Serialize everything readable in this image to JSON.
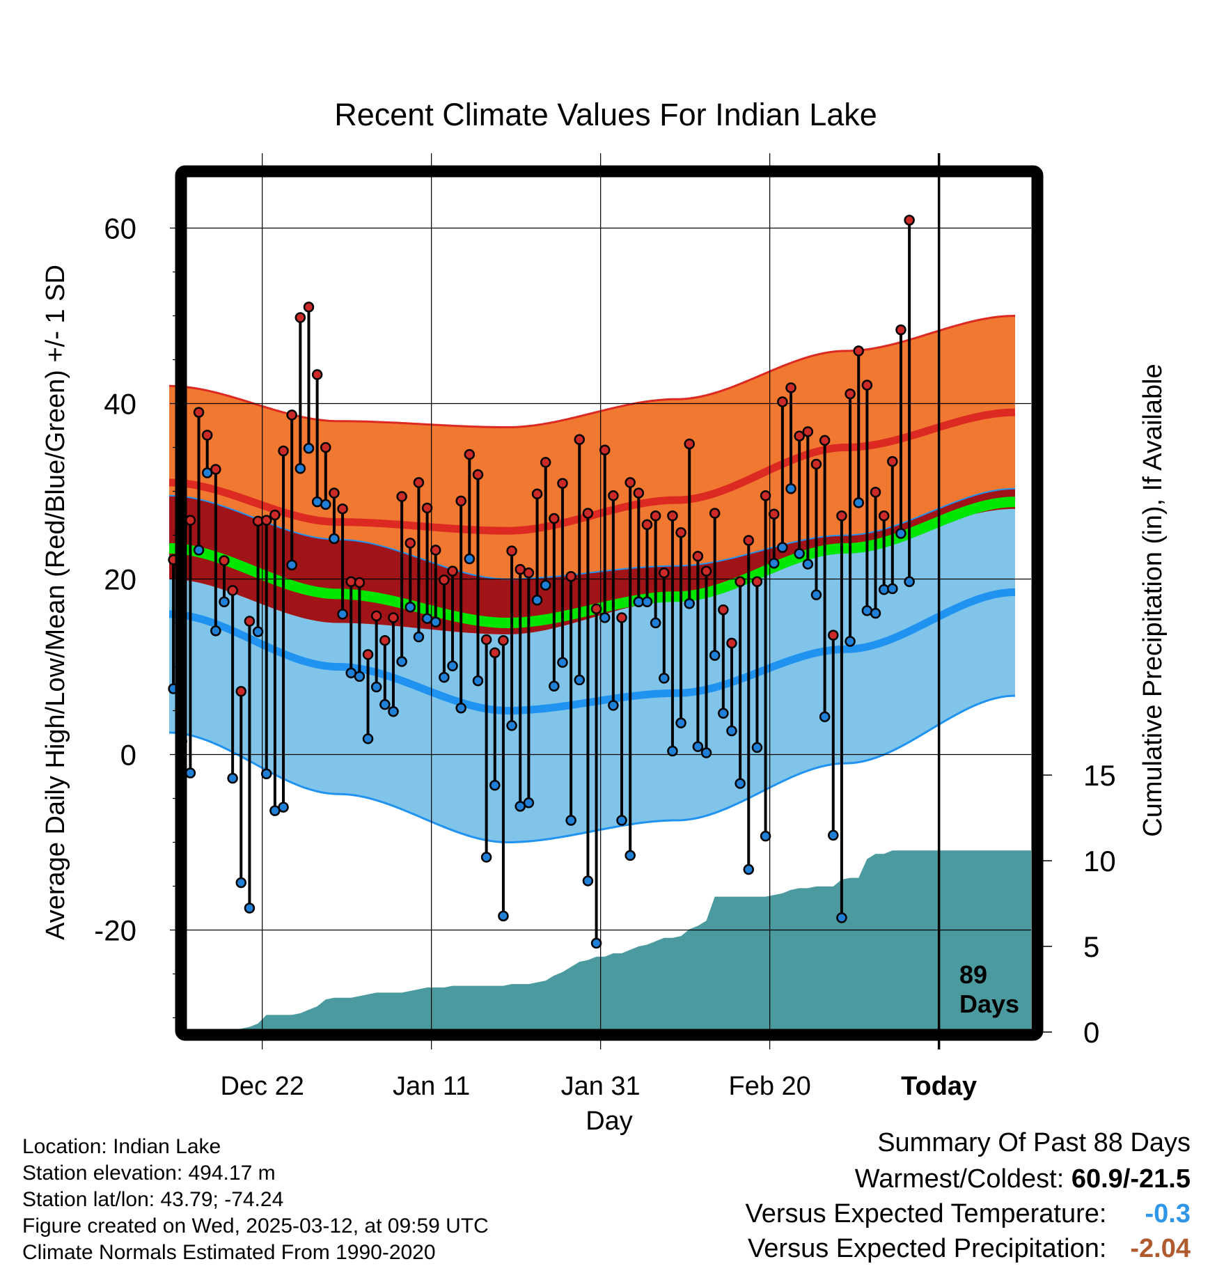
{
  "chart_data": {
    "type": "line",
    "title": "Recent Climate Values For Indian Lake",
    "xlabel": "Day",
    "ylabel": "Average Daily High/Low/Mean (Red/Blue/Green) +/- 1 SD",
    "y2label": "Cumulative Precipitation (in), If Available",
    "ylim": [
      -31,
      67
    ],
    "y2lim": [
      0,
      44
    ],
    "x_ticks": [
      "Dec 22",
      "Jan 11",
      "Jan 31",
      "Feb 20",
      "Today"
    ],
    "x_tick_days": [
      11,
      31,
      51,
      71,
      91
    ],
    "y_ticks": [
      -20,
      0,
      20,
      40,
      60
    ],
    "y2_ticks": [
      0,
      5,
      10,
      15
    ],
    "today_label": [
      "89",
      "Days"
    ],
    "grid": true,
    "normals": {
      "high_mean": [
        [
          0,
          31
        ],
        [
          20,
          26.5
        ],
        [
          40,
          25.5
        ],
        [
          60,
          29
        ],
        [
          80,
          35
        ],
        [
          100,
          39
        ]
      ],
      "high_sd": [
        [
          0,
          11
        ],
        [
          20,
          11.5
        ],
        [
          40,
          11.8
        ],
        [
          60,
          11.5
        ],
        [
          80,
          11
        ],
        [
          100,
          11
        ]
      ],
      "low_mean": [
        [
          0,
          16
        ],
        [
          20,
          10
        ],
        [
          40,
          5
        ],
        [
          60,
          7
        ],
        [
          80,
          12
        ],
        [
          100,
          18.5
        ]
      ],
      "low_sd": [
        [
          0,
          13.5
        ],
        [
          20,
          14.5
        ],
        [
          40,
          15
        ],
        [
          60,
          14.5
        ],
        [
          80,
          13
        ],
        [
          100,
          11.8
        ]
      ],
      "avg_mean": [
        [
          0,
          23.5
        ],
        [
          20,
          18.3
        ],
        [
          40,
          15
        ],
        [
          60,
          18
        ],
        [
          80,
          23.5
        ],
        [
          100,
          28.8
        ]
      ]
    },
    "series": [
      {
        "name": "High",
        "values": [
          22.2,
          26,
          26.7,
          39,
          36.4,
          32.5,
          22.1,
          18.7,
          7.2,
          15.2,
          26.6,
          26.7,
          27.3,
          34.6,
          38.7,
          49.8,
          51,
          43.3,
          35,
          29.8,
          28,
          19.7,
          19.6,
          11.4,
          15.8,
          13,
          15.6,
          29.4,
          24.1,
          31,
          28.1,
          23.3,
          19.9,
          20.9,
          28.9,
          34.2,
          31.9,
          13.1,
          11.6,
          13,
          23.2,
          21.1,
          20.7,
          29.7,
          33.3,
          26.9,
          30.9,
          20.3,
          35.9,
          27.5,
          16.6,
          34.7,
          29.5,
          15.6,
          31,
          29.8,
          26.2,
          27.2,
          20.7,
          27.2,
          25.3,
          35.4,
          22.6,
          20.9,
          27.5,
          16.5,
          12.7,
          19.7,
          24.4,
          19.7,
          29.5,
          27.4,
          40.2,
          41.8,
          36.3,
          36.8,
          33.1,
          35.8,
          13.6,
          27.2,
          41.1,
          46,
          42.1,
          29.9,
          27.2,
          33.4,
          48.4,
          60.9
        ]
      },
      {
        "name": "Low",
        "values": [
          7.5,
          1.5,
          -2.1,
          23.3,
          32.1,
          14.1,
          17.4,
          -2.7,
          -14.6,
          -17.5,
          14,
          -2.2,
          -6.4,
          -6,
          21.6,
          32.6,
          34.9,
          28.8,
          28.5,
          24.6,
          16,
          9.3,
          8.9,
          1.8,
          7.7,
          5.7,
          4.9,
          10.6,
          16.8,
          13.4,
          15.5,
          15.1,
          8.8,
          10.1,
          5.3,
          22.3,
          8.4,
          -11.7,
          -3.5,
          -18.4,
          3.3,
          -5.9,
          -5.5,
          17.6,
          19.3,
          7.8,
          10.5,
          -7.5,
          8.5,
          -14.4,
          -21.5,
          15.6,
          5.6,
          -7.5,
          -11.5,
          17.4,
          17.4,
          15,
          8.7,
          0.4,
          3.6,
          17.2,
          0.9,
          0.2,
          11.3,
          4.7,
          2.7,
          -3.3,
          -13.1,
          0.8,
          -9.3,
          21.8,
          23.6,
          30.3,
          22.9,
          21.7,
          18.2,
          4.3,
          -9.2,
          -18.6,
          12.9,
          28.7,
          16.4,
          16.1,
          18.8,
          18.9,
          25.2,
          19.7
        ]
      },
      {
        "name": "Cumulative Precipitation",
        "values": [
          0,
          0,
          0,
          0,
          0,
          0,
          0,
          0.1,
          0.2,
          0.3,
          0.5,
          1,
          1,
          1,
          1,
          1.1,
          1.3,
          1.5,
          1.9,
          2,
          2,
          2,
          2.1,
          2.2,
          2.3,
          2.3,
          2.3,
          2.3,
          2.4,
          2.5,
          2.6,
          2.6,
          2.6,
          2.7,
          2.7,
          2.7,
          2.7,
          2.7,
          2.7,
          2.7,
          2.8,
          2.8,
          2.8,
          2.9,
          3,
          3.3,
          3.5,
          3.8,
          4.1,
          4.2,
          4.4,
          4.4,
          4.6,
          4.6,
          4.8,
          5,
          5.1,
          5.3,
          5.5,
          5.5,
          5.6,
          6,
          6.2,
          6.5,
          7.9,
          7.9,
          7.9,
          7.9,
          7.9,
          7.9,
          7.9,
          8,
          8.1,
          8.3,
          8.4,
          8.4,
          8.5,
          8.5,
          8.5,
          8.9,
          9,
          9,
          10.1,
          10.4,
          10.4,
          10.6,
          10.6,
          10.6
        ]
      }
    ]
  },
  "info": {
    "location": "Location: Indian Lake",
    "elevation": "Station elevation: 494.17 m",
    "latlon": "Station lat/lon: 43.79; -74.24",
    "created": "Figure created on Wed, 2025-03-12, at 09:59 UTC",
    "normals": "Climate Normals Estimated From 1990-2020"
  },
  "summary": {
    "title": "Summary Of Past 88 Days",
    "warmest_label": "Warmest/Coldest:",
    "warmest_value": "60.9/-21.5",
    "temp_label": "Versus Expected Temperature:",
    "temp_value": "-0.3",
    "precip_label": "Versus Expected Precipitation:",
    "precip_value": "-2.04"
  },
  "colors": {
    "high_band": "#f07830",
    "high_line": "#dc2a22",
    "low_band": "#80c4ea",
    "low_line": "#2093f0",
    "mid_band": "#a01418",
    "mean_line": "#00e600",
    "precip_fill": "#4a9aa0",
    "high_dot": "#cc2a28",
    "low_dot": "#2080d8"
  }
}
